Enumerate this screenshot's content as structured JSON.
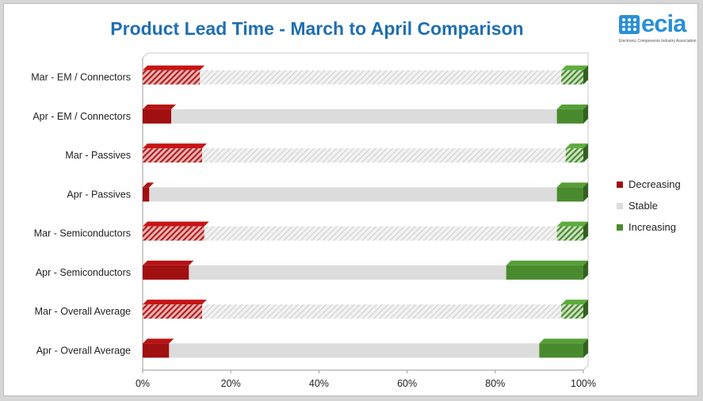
{
  "title": "Product Lead Time - March to April Comparison",
  "logo": {
    "text": "ecia",
    "subtitle": "Electronic Components Industry Association",
    "icon": "ecia-logo-grid",
    "color": "#2a8fd6"
  },
  "colors": {
    "title": "#1f6fb2",
    "decreasing": "#a01010",
    "stable": "#dcdcdc",
    "increasing": "#4a8a2f"
  },
  "chart_data": {
    "type": "bar",
    "orientation": "horizontal",
    "stacked": "100%",
    "categories": [
      "Mar - EM / Connectors",
      "Apr - EM / Connectors",
      "Mar - Passives",
      "Apr - Passives",
      "Mar - Semiconductors",
      "Apr - Semiconductors",
      "Mar - Overall Average",
      "Apr - Overall Average"
    ],
    "series": [
      {
        "name": "Decreasing",
        "values": [
          13,
          6.5,
          13.5,
          1.5,
          14,
          10.5,
          13.5,
          6
        ]
      },
      {
        "name": "Stable",
        "values": [
          82,
          87.5,
          82.5,
          92.5,
          80,
          72,
          81.5,
          84
        ]
      },
      {
        "name": "Increasing",
        "values": [
          5,
          6,
          4,
          6,
          6,
          17.5,
          5,
          10
        ]
      }
    ],
    "hatched_categories": [
      "Mar - EM / Connectors",
      "Mar - Passives",
      "Mar - Semiconductors",
      "Mar - Overall Average"
    ],
    "xticks": [
      "0%",
      "20%",
      "40%",
      "60%",
      "80%",
      "100%"
    ],
    "xlim": [
      0,
      100
    ],
    "legend": [
      "Decreasing",
      "Stable",
      "Increasing"
    ],
    "legend_position": "right",
    "style": "3d-bar"
  }
}
